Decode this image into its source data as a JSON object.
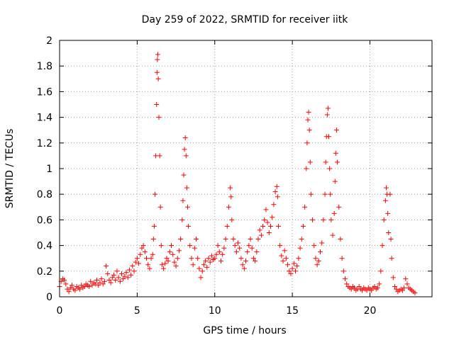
{
  "chart_data": {
    "type": "scatter",
    "title": "Day 259 of 2022, SRMTID for receiver iitk",
    "xlabel": "GPS time / hours",
    "ylabel": "SRMTID / TECUs",
    "xlim": [
      0,
      24
    ],
    "ylim": [
      0,
      2
    ],
    "x_ticks": [
      0,
      5,
      10,
      15,
      20
    ],
    "x_tick_labels": [
      "0",
      "5",
      "10",
      "15",
      "20"
    ],
    "y_ticks": [
      0,
      0.2,
      0.4,
      0.6,
      0.8,
      1,
      1.2,
      1.4,
      1.6,
      1.8,
      2
    ],
    "y_tick_labels": [
      "0",
      "0.2",
      "0.4",
      "0.6",
      "0.8",
      "1",
      "1.2",
      "1.4",
      "1.6",
      "1.8",
      "2"
    ],
    "grid": true,
    "marker": "+",
    "color": "#ff0000",
    "series": [
      {
        "name": "SRMTID",
        "points": [
          [
            0.0,
            0.08
          ],
          [
            0.1,
            0.12
          ],
          [
            0.2,
            0.14
          ],
          [
            0.3,
            0.13
          ],
          [
            0.4,
            0.1
          ],
          [
            0.5,
            0.06
          ],
          [
            0.6,
            0.04
          ],
          [
            0.7,
            0.07
          ],
          [
            0.8,
            0.09
          ],
          [
            0.9,
            0.06
          ],
          [
            1.0,
            0.05
          ],
          [
            1.1,
            0.08
          ],
          [
            1.2,
            0.07
          ],
          [
            1.3,
            0.06
          ],
          [
            1.4,
            0.09
          ],
          [
            1.5,
            0.07
          ],
          [
            1.6,
            0.08
          ],
          [
            1.7,
            0.1
          ],
          [
            1.8,
            0.09
          ],
          [
            1.9,
            0.08
          ],
          [
            2.0,
            0.12
          ],
          [
            2.1,
            0.09
          ],
          [
            2.2,
            0.11
          ],
          [
            2.3,
            0.1
          ],
          [
            2.4,
            0.13
          ],
          [
            2.5,
            0.09
          ],
          [
            2.6,
            0.11
          ],
          [
            2.7,
            0.14
          ],
          [
            2.8,
            0.1
          ],
          [
            2.9,
            0.12
          ],
          [
            3.0,
            0.24
          ],
          [
            3.1,
            0.18
          ],
          [
            3.2,
            0.13
          ],
          [
            3.3,
            0.11
          ],
          [
            3.4,
            0.15
          ],
          [
            3.5,
            0.17
          ],
          [
            3.6,
            0.13
          ],
          [
            3.7,
            0.2
          ],
          [
            3.8,
            0.15
          ],
          [
            3.9,
            0.12
          ],
          [
            4.0,
            0.18
          ],
          [
            4.1,
            0.14
          ],
          [
            4.2,
            0.16
          ],
          [
            4.3,
            0.19
          ],
          [
            4.4,
            0.15
          ],
          [
            4.5,
            0.21
          ],
          [
            4.6,
            0.17
          ],
          [
            4.7,
            0.24
          ],
          [
            4.8,
            0.2
          ],
          [
            4.9,
            0.27
          ],
          [
            5.0,
            0.3
          ],
          [
            5.1,
            0.26
          ],
          [
            5.2,
            0.33
          ],
          [
            5.3,
            0.38
          ],
          [
            5.4,
            0.4
          ],
          [
            5.5,
            0.35
          ],
          [
            5.6,
            0.3
          ],
          [
            5.7,
            0.25
          ],
          [
            5.8,
            0.22
          ],
          [
            5.9,
            0.3
          ],
          [
            6.0,
            0.33
          ],
          [
            6.05,
            0.45
          ],
          [
            6.1,
            0.55
          ],
          [
            6.15,
            0.8
          ],
          [
            6.2,
            1.1
          ],
          [
            6.25,
            1.5
          ],
          [
            6.28,
            1.75
          ],
          [
            6.3,
            1.85
          ],
          [
            6.33,
            1.89
          ],
          [
            6.36,
            1.7
          ],
          [
            6.4,
            1.4
          ],
          [
            6.45,
            1.1
          ],
          [
            6.5,
            0.7
          ],
          [
            6.55,
            0.4
          ],
          [
            6.6,
            0.25
          ],
          [
            6.7,
            0.22
          ],
          [
            6.8,
            0.26
          ],
          [
            6.9,
            0.3
          ],
          [
            7.0,
            0.28
          ],
          [
            7.1,
            0.35
          ],
          [
            7.2,
            0.4
          ],
          [
            7.3,
            0.33
          ],
          [
            7.4,
            0.27
          ],
          [
            7.5,
            0.24
          ],
          [
            7.6,
            0.3
          ],
          [
            7.7,
            0.36
          ],
          [
            7.8,
            0.45
          ],
          [
            7.9,
            0.6
          ],
          [
            7.95,
            0.75
          ],
          [
            8.0,
            0.95
          ],
          [
            8.05,
            1.15
          ],
          [
            8.1,
            1.24
          ],
          [
            8.15,
            1.1
          ],
          [
            8.2,
            0.85
          ],
          [
            8.25,
            0.7
          ],
          [
            8.3,
            0.55
          ],
          [
            8.4,
            0.4
          ],
          [
            8.5,
            0.3
          ],
          [
            8.6,
            0.25
          ],
          [
            8.7,
            0.38
          ],
          [
            8.8,
            0.45
          ],
          [
            8.9,
            0.3
          ],
          [
            9.0,
            0.22
          ],
          [
            9.1,
            0.15
          ],
          [
            9.2,
            0.2
          ],
          [
            9.3,
            0.25
          ],
          [
            9.4,
            0.28
          ],
          [
            9.5,
            0.23
          ],
          [
            9.6,
            0.3
          ],
          [
            9.7,
            0.27
          ],
          [
            9.8,
            0.32
          ],
          [
            9.9,
            0.29
          ],
          [
            10.0,
            0.3
          ],
          [
            10.1,
            0.33
          ],
          [
            10.2,
            0.4
          ],
          [
            10.3,
            0.35
          ],
          [
            10.4,
            0.28
          ],
          [
            10.5,
            0.33
          ],
          [
            10.6,
            0.38
          ],
          [
            10.7,
            0.45
          ],
          [
            10.8,
            0.55
          ],
          [
            10.9,
            0.7
          ],
          [
            11.0,
            0.85
          ],
          [
            11.05,
            0.78
          ],
          [
            11.1,
            0.6
          ],
          [
            11.2,
            0.45
          ],
          [
            11.3,
            0.4
          ],
          [
            11.4,
            0.35
          ],
          [
            11.5,
            0.42
          ],
          [
            11.6,
            0.38
          ],
          [
            11.7,
            0.3
          ],
          [
            11.8,
            0.25
          ],
          [
            11.9,
            0.22
          ],
          [
            12.0,
            0.28
          ],
          [
            12.1,
            0.35
          ],
          [
            12.2,
            0.4
          ],
          [
            12.3,
            0.45
          ],
          [
            12.4,
            0.38
          ],
          [
            12.5,
            0.3
          ],
          [
            12.6,
            0.28
          ],
          [
            12.7,
            0.35
          ],
          [
            12.8,
            0.45
          ],
          [
            12.9,
            0.52
          ],
          [
            13.0,
            0.48
          ],
          [
            13.1,
            0.55
          ],
          [
            13.2,
            0.6
          ],
          [
            13.3,
            0.68
          ],
          [
            13.4,
            0.58
          ],
          [
            13.5,
            0.5
          ],
          [
            13.6,
            0.55
          ],
          [
            13.7,
            0.62
          ],
          [
            13.8,
            0.72
          ],
          [
            13.9,
            0.82
          ],
          [
            14.0,
            0.86
          ],
          [
            14.05,
            0.78
          ],
          [
            14.1,
            0.55
          ],
          [
            14.2,
            0.4
          ],
          [
            14.3,
            0.32
          ],
          [
            14.4,
            0.28
          ],
          [
            14.5,
            0.36
          ],
          [
            14.6,
            0.3
          ],
          [
            14.7,
            0.25
          ],
          [
            14.8,
            0.2
          ],
          [
            14.9,
            0.18
          ],
          [
            15.0,
            0.22
          ],
          [
            15.1,
            0.26
          ],
          [
            15.2,
            0.2
          ],
          [
            15.3,
            0.24
          ],
          [
            15.4,
            0.3
          ],
          [
            15.5,
            0.38
          ],
          [
            15.6,
            0.45
          ],
          [
            15.7,
            0.55
          ],
          [
            15.8,
            0.7
          ],
          [
            15.9,
            1.0
          ],
          [
            15.95,
            1.2
          ],
          [
            16.0,
            1.38
          ],
          [
            16.05,
            1.44
          ],
          [
            16.1,
            1.3
          ],
          [
            16.15,
            1.05
          ],
          [
            16.2,
            0.8
          ],
          [
            16.3,
            0.6
          ],
          [
            16.4,
            0.4
          ],
          [
            16.5,
            0.3
          ],
          [
            16.6,
            0.25
          ],
          [
            16.7,
            0.28
          ],
          [
            16.8,
            0.35
          ],
          [
            16.9,
            0.42
          ],
          [
            17.0,
            0.6
          ],
          [
            17.1,
            0.8
          ],
          [
            17.15,
            1.05
          ],
          [
            17.2,
            1.25
          ],
          [
            17.25,
            1.42
          ],
          [
            17.3,
            1.47
          ],
          [
            17.35,
            1.25
          ],
          [
            17.4,
            1.0
          ],
          [
            17.45,
            0.8
          ],
          [
            17.5,
            0.6
          ],
          [
            17.6,
            0.48
          ],
          [
            17.7,
            0.65
          ],
          [
            17.75,
            0.9
          ],
          [
            17.8,
            1.12
          ],
          [
            17.85,
            1.3
          ],
          [
            17.9,
            1.05
          ],
          [
            18.0,
            0.7
          ],
          [
            18.1,
            0.45
          ],
          [
            18.2,
            0.3
          ],
          [
            18.3,
            0.2
          ],
          [
            18.4,
            0.14
          ],
          [
            18.5,
            0.1
          ],
          [
            18.6,
            0.08
          ],
          [
            18.7,
            0.07
          ],
          [
            18.8,
            0.06
          ],
          [
            18.9,
            0.08
          ],
          [
            19.0,
            0.07
          ],
          [
            19.1,
            0.05
          ],
          [
            19.2,
            0.06
          ],
          [
            19.3,
            0.08
          ],
          [
            19.4,
            0.06
          ],
          [
            19.5,
            0.05
          ],
          [
            19.6,
            0.07
          ],
          [
            19.7,
            0.06
          ],
          [
            19.8,
            0.05
          ],
          [
            19.9,
            0.07
          ],
          [
            20.0,
            0.06
          ],
          [
            20.1,
            0.05
          ],
          [
            20.2,
            0.07
          ],
          [
            20.3,
            0.08
          ],
          [
            20.4,
            0.06
          ],
          [
            20.5,
            0.07
          ],
          [
            20.6,
            0.1
          ],
          [
            20.7,
            0.2
          ],
          [
            20.8,
            0.4
          ],
          [
            20.9,
            0.6
          ],
          [
            21.0,
            0.75
          ],
          [
            21.05,
            0.85
          ],
          [
            21.1,
            0.8
          ],
          [
            21.15,
            0.65
          ],
          [
            21.2,
            0.5
          ],
          [
            21.3,
            0.8
          ],
          [
            21.35,
            0.45
          ],
          [
            21.4,
            0.3
          ],
          [
            21.5,
            0.15
          ],
          [
            21.6,
            0.08
          ],
          [
            21.7,
            0.06
          ],
          [
            21.8,
            0.04
          ],
          [
            21.9,
            0.05
          ],
          [
            22.0,
            0.06
          ],
          [
            22.1,
            0.05
          ],
          [
            22.2,
            0.07
          ],
          [
            22.3,
            0.14
          ],
          [
            22.4,
            0.1
          ],
          [
            22.5,
            0.07
          ],
          [
            22.6,
            0.06
          ],
          [
            22.7,
            0.05
          ],
          [
            22.8,
            0.04
          ],
          [
            22.9,
            0.03
          ]
        ]
      }
    ]
  }
}
